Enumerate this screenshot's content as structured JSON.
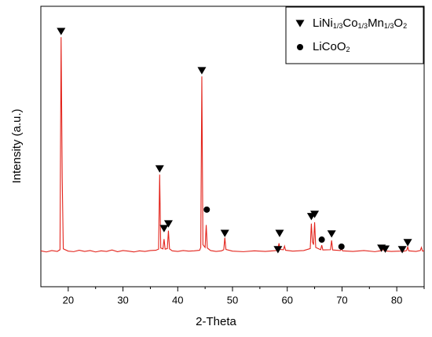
{
  "chart_data": {
    "type": "line",
    "xlabel": "2-Theta",
    "ylabel": "Intensity (a.u.)",
    "xlim": [
      15,
      85
    ],
    "xticks": [
      20,
      30,
      40,
      50,
      60,
      70,
      80
    ],
    "xminorticks": [
      25,
      35,
      45,
      55,
      65,
      75,
      85
    ],
    "ylim": [
      0,
      100
    ],
    "color": "#e3241c",
    "x": [
      15,
      16,
      17,
      18,
      18.5,
      18.7,
      18.9,
      19.1,
      20,
      21,
      22,
      23,
      24,
      25,
      26,
      27,
      28,
      29,
      30,
      31,
      32,
      33,
      34,
      35,
      36,
      36.5,
      36.7,
      36.9,
      37.3,
      37.5,
      37.7,
      38.1,
      38.3,
      38.5,
      39,
      40,
      41,
      42,
      43,
      44,
      44.2,
      44.4,
      44.6,
      45,
      45.2,
      45.4,
      46,
      47,
      48,
      48.4,
      48.6,
      48.8,
      50,
      52,
      54,
      56,
      58,
      58.3,
      58.5,
      58.7,
      59.3,
      59.5,
      59.7,
      61,
      63,
      64.2,
      64.4,
      64.6,
      64.8,
      65,
      65.2,
      66.1,
      66.3,
      66.5,
      67.9,
      68.1,
      68.3,
      69.7,
      69.9,
      70.1,
      72,
      74,
      76,
      77.3,
      77.5,
      77.7,
      79,
      80.8,
      81,
      81.2,
      81.8,
      82,
      82.2,
      83.5,
      84.3,
      84.5,
      84.7,
      85
    ],
    "values": [
      12.8,
      12.4,
      12.9,
      12.6,
      13.2,
      89,
      39,
      13.5,
      12.7,
      12.5,
      13.0,
      12.6,
      12.9,
      12.4,
      12.8,
      12.6,
      13.1,
      12.5,
      12.9,
      12.7,
      12.4,
      12.8,
      12.6,
      12.9,
      13.0,
      13.4,
      40,
      13.8,
      13.5,
      17,
      13.4,
      13.6,
      20,
      13.5,
      12.8,
      12.6,
      12.9,
      12.7,
      12.8,
      13.0,
      14,
      75,
      15,
      14,
      22,
      13.8,
      12.9,
      12.6,
      12.8,
      13.2,
      17.5,
      13.3,
      12.7,
      12.5,
      12.8,
      12.6,
      12.9,
      13.6,
      15.5,
      13.3,
      13.2,
      14.5,
      13.0,
      12.7,
      12.9,
      13.6,
      22.5,
      16,
      15,
      23,
      14,
      13.2,
      14.8,
      13.1,
      13.2,
      16.5,
      13.1,
      12.9,
      13.6,
      12.8,
      12.6,
      12.9,
      12.5,
      12.9,
      13.5,
      12.8,
      12.6,
      12.7,
      13.2,
      12.6,
      12.9,
      14.2,
      12.8,
      12.6,
      12.9,
      14,
      12.7,
      12.8
    ],
    "legend": "upper right",
    "series": [
      {
        "name": "LiNi1/3Co1/3Mn1/3O2",
        "marker": "triangle",
        "color": "#000000",
        "x": [
          18.7,
          36.7,
          37.5,
          38.3,
          44.4,
          48.6,
          58.3,
          58.6,
          64.4,
          65.0,
          68.1,
          77.2,
          77.9,
          81.0,
          82.0
        ],
        "values": [
          91,
          42,
          20.7,
          22.4,
          77,
          19,
          13.2,
          19,
          25,
          25.8,
          18.8,
          13.7,
          13.4,
          13.2,
          15.7
        ]
      },
      {
        "name": "LiCoO2",
        "marker": "circle",
        "color": "#000000",
        "x": [
          45.3,
          66.3,
          69.9
        ],
        "values": [
          27.5,
          16.8,
          14.3
        ]
      }
    ]
  }
}
